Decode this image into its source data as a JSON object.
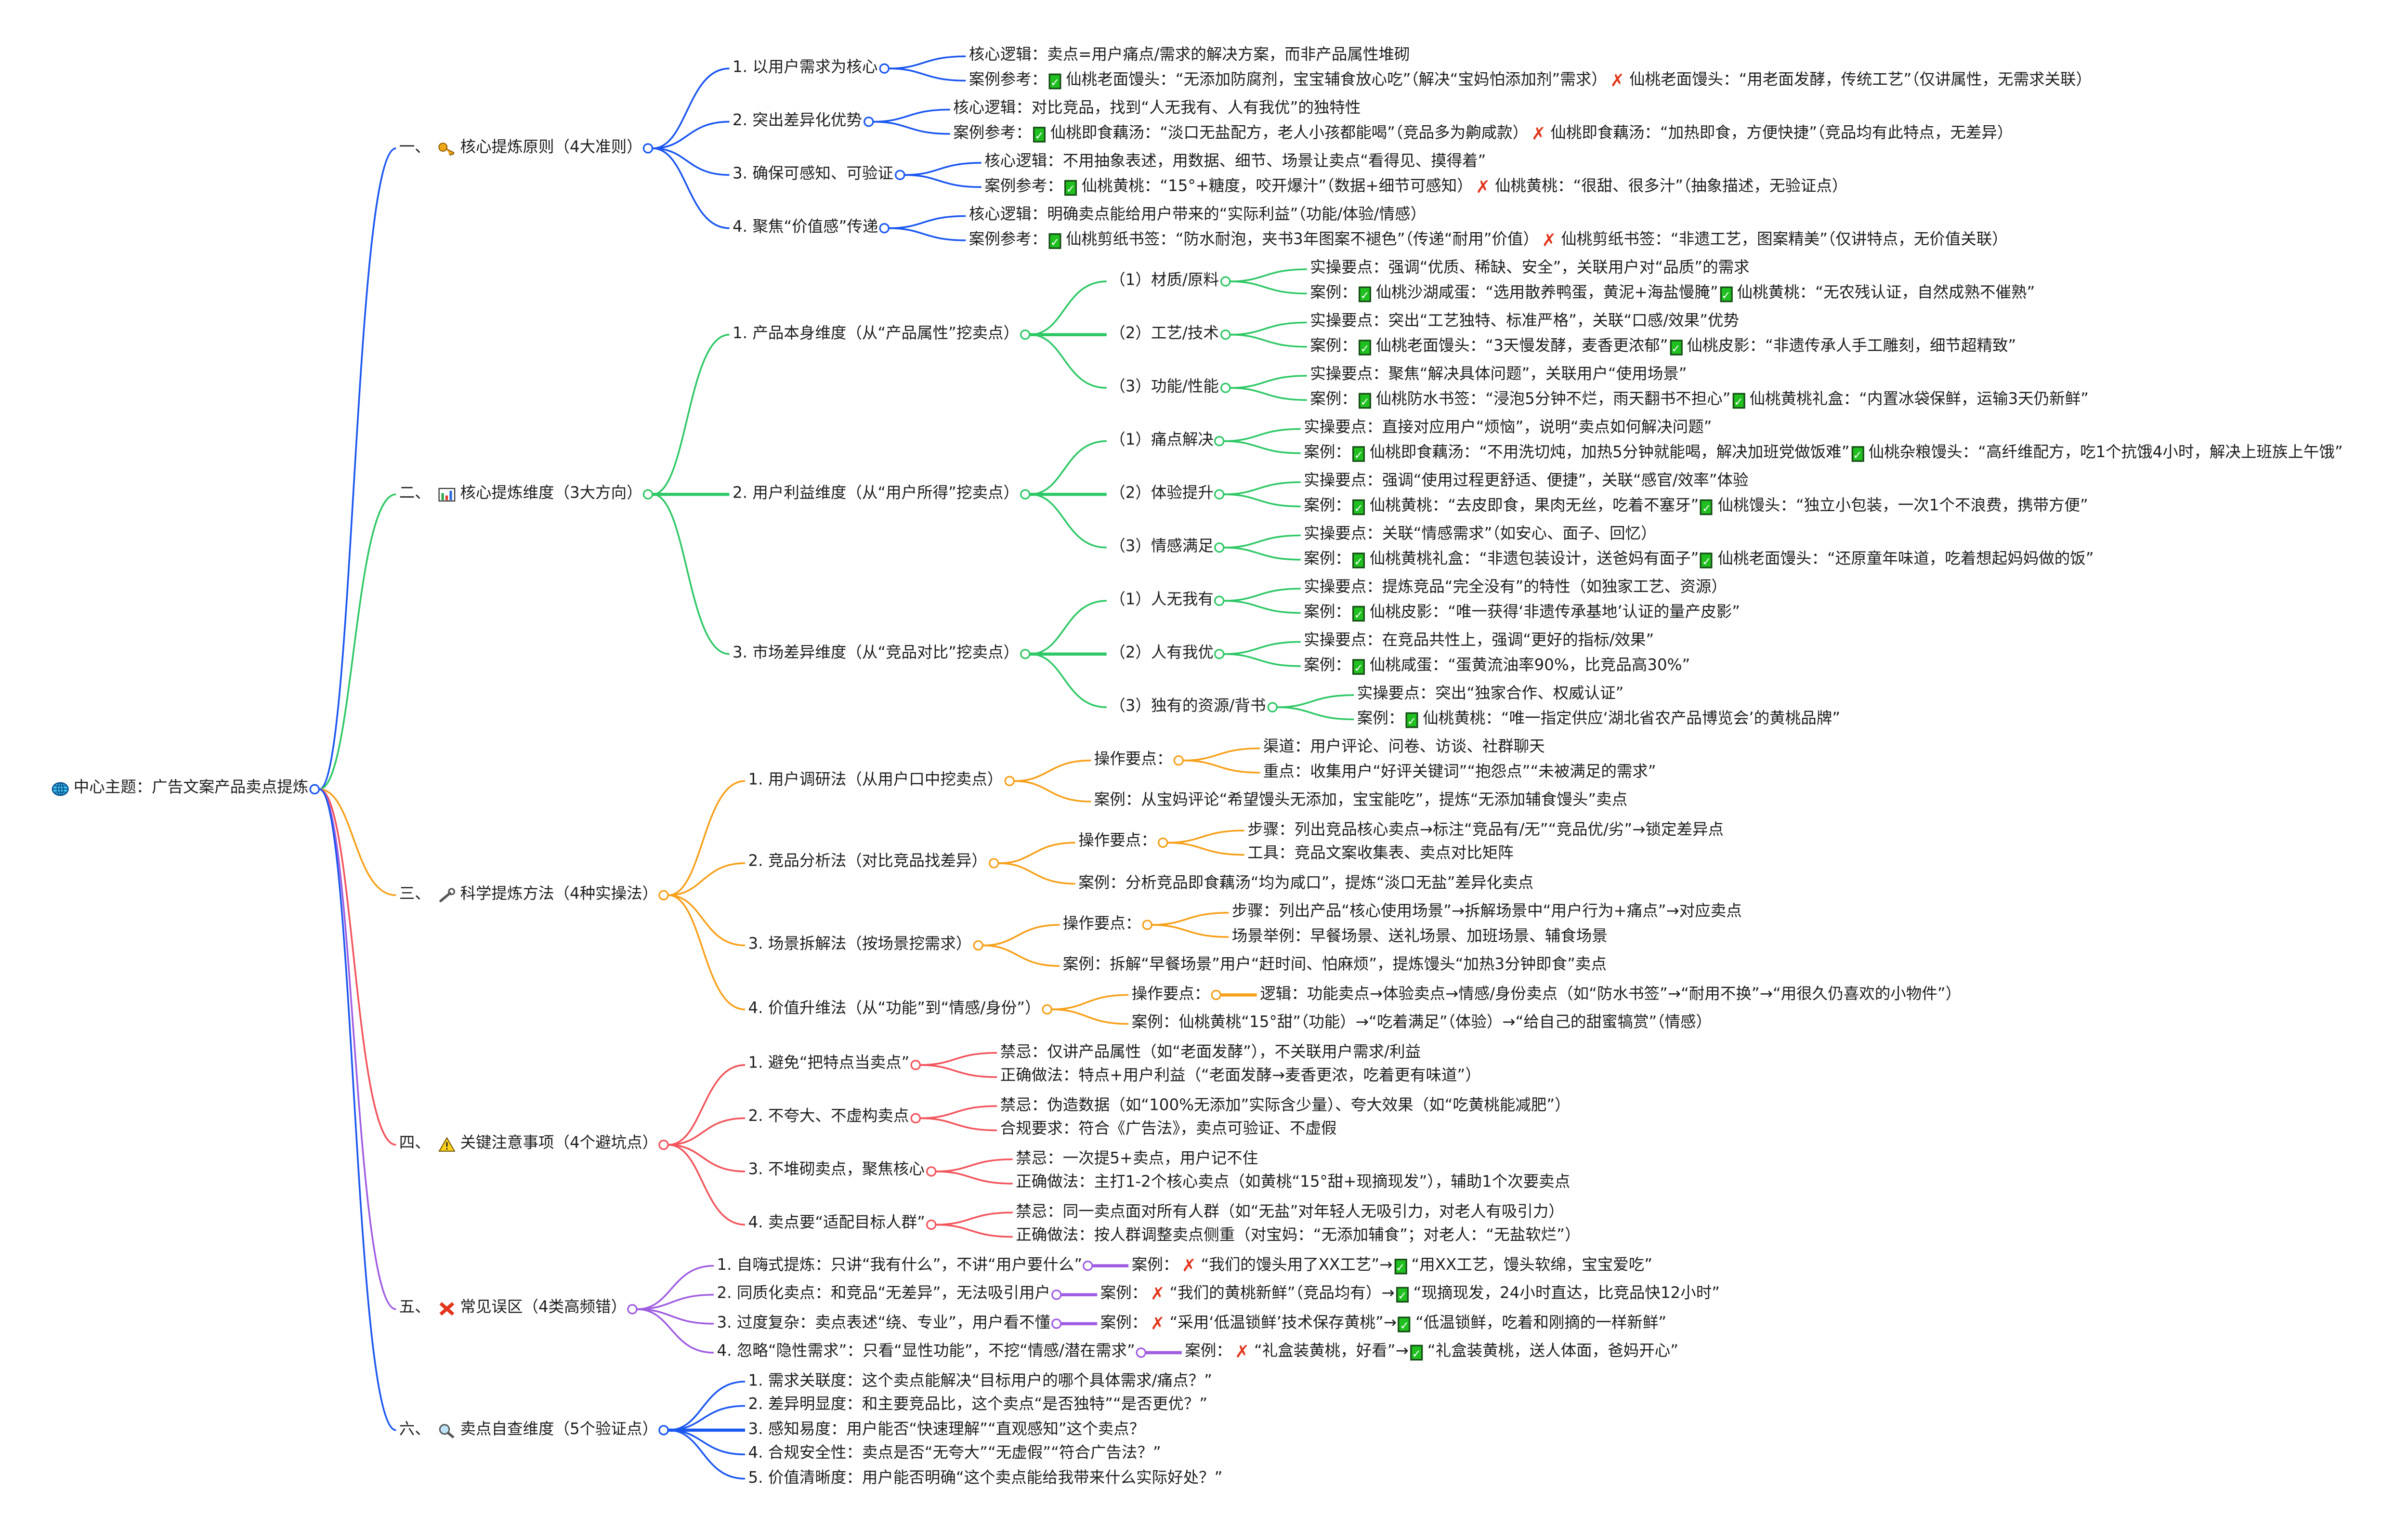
{
  "center": {
    "label": "中心主题：广告文案产品卖点提炼",
    "icon": "globe-icon"
  },
  "sections": [
    {
      "num": "一、",
      "icon": "key-icon",
      "label": "核心提炼原则（4大准则）",
      "color": "#1a56f0",
      "children": [
        {
          "label": "1. 以用户需求为核心",
          "children": [
            {
              "label": "核心逻辑：卖点=用户痛点/需求的解决方案，而非产品属性堆砌"
            },
            {
              "label": "案例参考：✅仙桃老面馒头：“无添加防腐剂，宝宝辅食放心吃”（解决“宝妈怕添加剂”需求）❌仙桃老面馒头：“用老面发酵，传统工艺”（仅讲属性，无需求关联）"
            }
          ]
        },
        {
          "label": "2. 突出差异化优势",
          "children": [
            {
              "label": "核心逻辑：对比竞品，找到“人无我有、人有我优”的独特性"
            },
            {
              "label": "案例参考：✅仙桃即食藕汤：“淡口无盐配方，老人小孩都能喝”（竞品多为齁咸款）❌仙桃即食藕汤：“加热即食，方便快捷”（竞品均有此特点，无差异）"
            }
          ]
        },
        {
          "label": "3. 确保可感知、可验证",
          "children": [
            {
              "label": "核心逻辑：不用抽象表述，用数据、细节、场景让卖点“看得见、摸得着”"
            },
            {
              "label": "案例参考：✅仙桃黄桃：“15°+糖度，咬开爆汁”（数据+细节可感知）❌仙桃黄桃：“很甜、很多汁”（抽象描述，无验证点）"
            }
          ]
        },
        {
          "label": "4. 聚焦“价值感”传递",
          "children": [
            {
              "label": "核心逻辑：明确卖点能给用户带来的“实际利益”（功能/体验/情感）"
            },
            {
              "label": "案例参考：✅仙桃剪纸书签：“防水耐泡，夹书3年图案不褪色”（传递“耐用”价值）❌仙桃剪纸书签：“非遗工艺，图案精美”（仅讲特点，无价值关联）"
            }
          ]
        }
      ]
    },
    {
      "num": "二、",
      "icon": "bar-chart-icon",
      "label": "核心提炼维度（3大方向）",
      "color": "#2fc866",
      "children": [
        {
          "label": "1. 产品本身维度（从“产品属性”挖卖点）",
          "children": [
            {
              "label": "（1）材质/原料",
              "children": [
                {
                  "label": "实操要点：强调“优质、稀缺、安全”，关联用户对“品质”的需求"
                },
                {
                  "label": "案例：✅仙桃沙湖咸蛋：“选用散养鸭蛋，黄泥+海盐慢腌”✅仙桃黄桃：“无农残认证，自然成熟不催熟”"
                }
              ]
            },
            {
              "label": "（2）工艺/技术",
              "children": [
                {
                  "label": "实操要点：突出“工艺独特、标准严格”，关联“口感/效果”优势"
                },
                {
                  "label": "案例：✅仙桃老面馒头：“3天慢发酵，麦香更浓郁”✅仙桃皮影：“非遗传承人手工雕刻，细节超精致”"
                }
              ]
            },
            {
              "label": "（3）功能/性能",
              "children": [
                {
                  "label": "实操要点：聚焦“解决具体问题”，关联用户“使用场景”"
                },
                {
                  "label": "案例：✅仙桃防水书签：“浸泡5分钟不烂，雨天翻书不担心”✅仙桃黄桃礼盒：“内置冰袋保鲜，运输3天仍新鲜”"
                }
              ]
            }
          ]
        },
        {
          "label": "2. 用户利益维度（从“用户所得”挖卖点）",
          "children": [
            {
              "label": "（1）痛点解决",
              "children": [
                {
                  "label": "实操要点：直接对应用户“烦恼”，说明“卖点如何解决问题”"
                },
                {
                  "label": "案例：✅仙桃即食藕汤：“不用洗切炖，加热5分钟就能喝，解决加班党做饭难”✅仙桃杂粮馒头：“高纤维配方，吃1个抗饿4小时，解决上班族上午饿”"
                }
              ]
            },
            {
              "label": "（2）体验提升",
              "children": [
                {
                  "label": "实操要点：强调“使用过程更舒适、便捷”，关联“感官/效率”体验"
                },
                {
                  "label": "案例：✅仙桃黄桃：“去皮即食，果肉无丝，吃着不塞牙”✅仙桃馒头：“独立小包装，一次1个不浪费，携带方便”"
                }
              ]
            },
            {
              "label": "（3）情感满足",
              "children": [
                {
                  "label": "实操要点：关联“情感需求”（如安心、面子、回忆）"
                },
                {
                  "label": "案例：✅仙桃黄桃礼盒：“非遗包装设计，送爸妈有面子”✅仙桃老面馒头：“还原童年味道，吃着想起妈妈做的饭”"
                }
              ]
            }
          ]
        },
        {
          "label": "3. 市场差异维度（从“竞品对比”挖卖点）",
          "children": [
            {
              "label": "（1）人无我有",
              "children": [
                {
                  "label": "实操要点：提炼竞品“完全没有”的特性（如独家工艺、资源）"
                },
                {
                  "label": "案例：✅仙桃皮影：“唯一获得‘非遗传承基地’认证的量产皮影”"
                }
              ]
            },
            {
              "label": "（2）人有我优",
              "children": [
                {
                  "label": "实操要点：在竞品共性上，强调“更好的指标/效果”"
                },
                {
                  "label": "案例：✅仙桃咸蛋：“蛋黄流油率90%，比竞品高30%”"
                }
              ]
            },
            {
              "label": "（3）独有的资源/背书",
              "children": [
                {
                  "label": "实操要点：突出“独家合作、权威认证”"
                },
                {
                  "label": "案例：✅仙桃黄桃：“唯一指定供应‘湖北省农产品博览会’的黄桃品牌”"
                }
              ]
            }
          ]
        }
      ]
    },
    {
      "num": "三、",
      "icon": "wrench-icon",
      "label": "科学提炼方法（4种实操法）",
      "color": "#f7a01a",
      "children": [
        {
          "label": "1. 用户调研法（从用户口中挖卖点）",
          "children": [
            {
              "label": "操作要点：",
              "children": [
                {
                  "label": "渠道：用户评论、问卷、访谈、社群聊天"
                },
                {
                  "label": "重点：收集用户“好评关键词”“抱怨点”“未被满足的需求”"
                }
              ]
            },
            {
              "label": "案例：从宝妈评论“希望馒头无添加，宝宝能吃”，提炼“无添加辅食馒头”卖点"
            }
          ]
        },
        {
          "label": "2. 竞品分析法（对比竞品找差异）",
          "children": [
            {
              "label": "操作要点：",
              "children": [
                {
                  "label": "步骤：列出竞品核心卖点→标注“竞品有/无”“竞品优/劣”→锁定差异点"
                },
                {
                  "label": "工具：竞品文案收集表、卖点对比矩阵"
                }
              ]
            },
            {
              "label": "案例：分析竞品即食藕汤“均为咸口”，提炼“淡口无盐”差异化卖点"
            }
          ]
        },
        {
          "label": "3. 场景拆解法（按场景挖需求）",
          "children": [
            {
              "label": "操作要点：",
              "children": [
                {
                  "label": "步骤：列出产品“核心使用场景”→拆解场景中“用户行为+痛点”→对应卖点"
                },
                {
                  "label": "场景举例：早餐场景、送礼场景、加班场景、辅食场景"
                }
              ]
            },
            {
              "label": "案例：拆解“早餐场景”用户“赶时间、怕麻烦”，提炼馒头“加热3分钟即食”卖点"
            }
          ]
        },
        {
          "label": "4. 价值升维法（从“功能”到“情感/身份”）",
          "children": [
            {
              "label": "操作要点：",
              "inline": true,
              "children": [
                {
                  "label": "逻辑：功能卖点→体验卖点→情感/身份卖点（如“防水书签”→“耐用不换”→“用很久仍喜欢的小物件”）"
                }
              ]
            },
            {
              "label": "案例：仙桃黄桃“15°甜”（功能）→“吃着满足”（体验）→“给自己的甜蜜犒赏”（情感）"
            }
          ]
        }
      ]
    },
    {
      "num": "四、",
      "icon": "warning-icon",
      "label": "关键注意事项（4个避坑点）",
      "color": "#f2545b",
      "children": [
        {
          "label": "1. 避免“把特点当卖点”",
          "children": [
            {
              "label": "禁忌：仅讲产品属性（如“老面发酵”），不关联用户需求/利益"
            },
            {
              "label": "正确做法：特点+用户利益（“老面发酵→麦香更浓，吃着更有味道”）"
            }
          ]
        },
        {
          "label": "2. 不夸大、不虚构卖点",
          "children": [
            {
              "label": "禁忌：伪造数据（如“100%无添加”实际含少量）、夸大效果（如“吃黄桃能减肥”）"
            },
            {
              "label": "合规要求：符合《广告法》，卖点可验证、不虚假"
            }
          ]
        },
        {
          "label": "3. 不堆砌卖点，聚焦核心",
          "children": [
            {
              "label": "禁忌：一次提5+卖点，用户记不住"
            },
            {
              "label": "正确做法：主打1-2个核心卖点（如黄桃“15°甜+现摘现发”），辅助1个次要卖点"
            }
          ]
        },
        {
          "label": "4. 卖点要“适配目标人群”",
          "children": [
            {
              "label": "禁忌：同一卖点面对所有人群（如“无盐”对年轻人无吸引力，对老人有吸引力）"
            },
            {
              "label": "正确做法：按人群调整卖点侧重（对宝妈：“无添加辅食”；对老人：“无盐软烂”）"
            }
          ]
        }
      ]
    },
    {
      "num": "五、",
      "icon": "cross-icon",
      "label": "常见误区（4类高频错）",
      "color": "#9f5de2",
      "children": [
        {
          "label": "1. 自嗨式提炼：只讲“我有什么”，不讲“用户要什么”",
          "inline": true,
          "children": [
            {
              "label": "案例：❌“我们的馒头用了XX工艺”→✅“用XX工艺，馒头软绵，宝宝爱吃”"
            }
          ]
        },
        {
          "label": "2. 同质化卖点：和竞品“无差异”，无法吸引用户",
          "inline": true,
          "children": [
            {
              "label": "案例：❌“我们的黄桃新鲜”（竞品均有）→✅“现摘现发，24小时直达，比竞品快12小时”"
            }
          ]
        },
        {
          "label": "3. 过度复杂：卖点表述“绕、专业”，用户看不懂",
          "inline": true,
          "children": [
            {
              "label": "案例：❌“采用‘低温锁鲜’技术保存黄桃”→✅“低温锁鲜，吃着和刚摘的一样新鲜”"
            }
          ]
        },
        {
          "label": "4. 忽略“隐性需求”：只看“显性功能”，不挖“情感/潜在需求”",
          "inline": true,
          "children": [
            {
              "label": "案例：❌“礼盒装黄桃，好看”→✅“礼盒装黄桃，送人体面，爸妈开心”"
            }
          ]
        }
      ]
    },
    {
      "num": "六、",
      "icon": "magnifier-icon",
      "label": "卖点自查维度（5个验证点）",
      "color": "#1a56f0",
      "children": [
        {
          "label": "1. 需求关联度：这个卖点能解决“目标用户的哪个具体需求/痛点？”"
        },
        {
          "label": "2. 差异明显度：和主要竞品比，这个卖点“是否独特”“是否更优？”"
        },
        {
          "label": "3. 感知易度：用户能否“快速理解”“直观感知”这个卖点？"
        },
        {
          "label": "4. 合规安全性：卖点是否“无夸大”“无虚假”“符合广告法？”"
        },
        {
          "label": "5. 价值清晰度：用户能否明确“这个卖点能给我带来什么实际好处？”"
        }
      ]
    }
  ]
}
